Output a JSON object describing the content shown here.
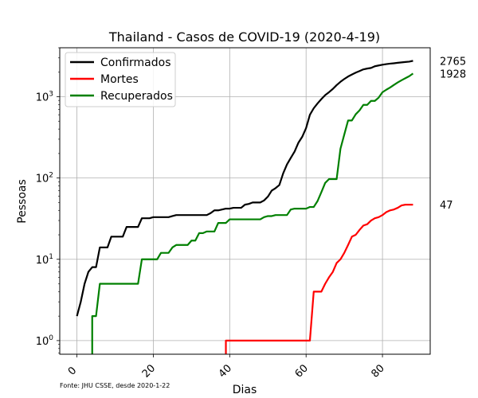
{
  "chart_data": {
    "type": "line",
    "title": "Thailand - Casos de COVID-19 (2020-4-19)",
    "xlabel": "Dias",
    "ylabel": "Pessoas",
    "yscale": "log",
    "xlim": [
      -4.5,
      92.5
    ],
    "ylim": [
      0.68,
      4000
    ],
    "grid": true,
    "legend_position": "top-left",
    "source": "Fonte: JHU CSSE, desde 2020-1-22",
    "x_ticks": [
      {
        "value": 0,
        "label": "0"
      },
      {
        "value": 20,
        "label": "20"
      },
      {
        "value": 40,
        "label": "40"
      },
      {
        "value": 60,
        "label": "60"
      },
      {
        "value": 80,
        "label": "80"
      }
    ],
    "y_ticks": [
      {
        "value": 1,
        "base": "10",
        "exp": "0"
      },
      {
        "value": 10,
        "base": "10",
        "exp": "1"
      },
      {
        "value": 100,
        "base": "10",
        "exp": "2"
      },
      {
        "value": 1000,
        "base": "10",
        "exp": "3"
      }
    ],
    "series": [
      {
        "name": "Confirmados",
        "color": "#000000",
        "end_label": "2765",
        "points": [
          [
            0,
            2
          ],
          [
            1,
            3
          ],
          [
            2,
            5
          ],
          [
            3,
            7
          ],
          [
            4,
            8
          ],
          [
            5,
            8
          ],
          [
            6,
            14
          ],
          [
            7,
            14
          ],
          [
            8,
            14
          ],
          [
            9,
            19
          ],
          [
            10,
            19
          ],
          [
            11,
            19
          ],
          [
            12,
            19
          ],
          [
            13,
            25
          ],
          [
            14,
            25
          ],
          [
            15,
            25
          ],
          [
            16,
            25
          ],
          [
            17,
            32
          ],
          [
            18,
            32
          ],
          [
            19,
            32
          ],
          [
            20,
            33
          ],
          [
            21,
            33
          ],
          [
            22,
            33
          ],
          [
            23,
            33
          ],
          [
            24,
            33
          ],
          [
            25,
            34
          ],
          [
            26,
            35
          ],
          [
            27,
            35
          ],
          [
            28,
            35
          ],
          [
            29,
            35
          ],
          [
            30,
            35
          ],
          [
            31,
            35
          ],
          [
            32,
            35
          ],
          [
            33,
            35
          ],
          [
            34,
            35
          ],
          [
            35,
            37
          ],
          [
            36,
            40
          ],
          [
            37,
            40
          ],
          [
            38,
            41
          ],
          [
            39,
            42
          ],
          [
            40,
            42
          ],
          [
            41,
            43
          ],
          [
            42,
            43
          ],
          [
            43,
            43
          ],
          [
            44,
            47
          ],
          [
            45,
            48
          ],
          [
            46,
            50
          ],
          [
            47,
            50
          ],
          [
            48,
            50
          ],
          [
            49,
            53
          ],
          [
            50,
            59
          ],
          [
            51,
            70
          ],
          [
            52,
            75
          ],
          [
            53,
            82
          ],
          [
            54,
            114
          ],
          [
            55,
            147
          ],
          [
            56,
            177
          ],
          [
            57,
            212
          ],
          [
            58,
            272
          ],
          [
            59,
            322
          ],
          [
            60,
            411
          ],
          [
            61,
            599
          ],
          [
            62,
            721
          ],
          [
            63,
            827
          ],
          [
            64,
            934
          ],
          [
            65,
            1045
          ],
          [
            66,
            1136
          ],
          [
            67,
            1245
          ],
          [
            68,
            1388
          ],
          [
            69,
            1524
          ],
          [
            70,
            1651
          ],
          [
            71,
            1771
          ],
          [
            72,
            1875
          ],
          [
            73,
            1978
          ],
          [
            74,
            2067
          ],
          [
            75,
            2169
          ],
          [
            76,
            2220
          ],
          [
            77,
            2258
          ],
          [
            78,
            2369
          ],
          [
            79,
            2423
          ],
          [
            80,
            2473
          ],
          [
            81,
            2518
          ],
          [
            82,
            2551
          ],
          [
            83,
            2579
          ],
          [
            84,
            2613
          ],
          [
            85,
            2643
          ],
          [
            86,
            2672
          ],
          [
            87,
            2700
          ],
          [
            88,
            2765
          ]
        ]
      },
      {
        "name": "Mortes",
        "color": "#ff0000",
        "end_label": "47",
        "points": [
          [
            39,
            0.68
          ],
          [
            39,
            1
          ],
          [
            40,
            1
          ],
          [
            41,
            1
          ],
          [
            42,
            1
          ],
          [
            43,
            1
          ],
          [
            44,
            1
          ],
          [
            45,
            1
          ],
          [
            46,
            1
          ],
          [
            47,
            1
          ],
          [
            48,
            1
          ],
          [
            49,
            1
          ],
          [
            50,
            1
          ],
          [
            51,
            1
          ],
          [
            52,
            1
          ],
          [
            53,
            1
          ],
          [
            54,
            1
          ],
          [
            55,
            1
          ],
          [
            56,
            1
          ],
          [
            57,
            1
          ],
          [
            58,
            1
          ],
          [
            59,
            1
          ],
          [
            60,
            1
          ],
          [
            61,
            1
          ],
          [
            62,
            4
          ],
          [
            63,
            4
          ],
          [
            64,
            4
          ],
          [
            65,
            5
          ],
          [
            66,
            6
          ],
          [
            67,
            7
          ],
          [
            68,
            9
          ],
          [
            69,
            10
          ],
          [
            70,
            12
          ],
          [
            71,
            15
          ],
          [
            72,
            19
          ],
          [
            73,
            20
          ],
          [
            74,
            23
          ],
          [
            75,
            26
          ],
          [
            76,
            27
          ],
          [
            77,
            30
          ],
          [
            78,
            32
          ],
          [
            79,
            33
          ],
          [
            80,
            35
          ],
          [
            81,
            38
          ],
          [
            82,
            40
          ],
          [
            83,
            41
          ],
          [
            84,
            43
          ],
          [
            85,
            46
          ],
          [
            86,
            47
          ],
          [
            87,
            47
          ],
          [
            88,
            47
          ]
        ]
      },
      {
        "name": "Recuperados",
        "color": "#008000",
        "end_label": "1928",
        "points": [
          [
            4,
            0.68
          ],
          [
            4,
            2
          ],
          [
            5,
            2
          ],
          [
            6,
            5
          ],
          [
            7,
            5
          ],
          [
            8,
            5
          ],
          [
            9,
            5
          ],
          [
            10,
            5
          ],
          [
            11,
            5
          ],
          [
            12,
            5
          ],
          [
            13,
            5
          ],
          [
            14,
            5
          ],
          [
            15,
            5
          ],
          [
            16,
            5
          ],
          [
            17,
            10
          ],
          [
            18,
            10
          ],
          [
            19,
            10
          ],
          [
            20,
            10
          ],
          [
            21,
            10
          ],
          [
            22,
            12
          ],
          [
            23,
            12
          ],
          [
            24,
            12
          ],
          [
            25,
            14
          ],
          [
            26,
            15
          ],
          [
            27,
            15
          ],
          [
            28,
            15
          ],
          [
            29,
            15
          ],
          [
            30,
            17
          ],
          [
            31,
            17
          ],
          [
            32,
            21
          ],
          [
            33,
            21
          ],
          [
            34,
            22
          ],
          [
            35,
            22
          ],
          [
            36,
            22
          ],
          [
            37,
            28
          ],
          [
            38,
            28
          ],
          [
            39,
            28
          ],
          [
            40,
            31
          ],
          [
            41,
            31
          ],
          [
            42,
            31
          ],
          [
            43,
            31
          ],
          [
            44,
            31
          ],
          [
            45,
            31
          ],
          [
            46,
            31
          ],
          [
            47,
            31
          ],
          [
            48,
            31
          ],
          [
            49,
            33
          ],
          [
            50,
            34
          ],
          [
            51,
            34
          ],
          [
            52,
            35
          ],
          [
            53,
            35
          ],
          [
            54,
            35
          ],
          [
            55,
            35
          ],
          [
            56,
            41
          ],
          [
            57,
            42
          ],
          [
            58,
            42
          ],
          [
            59,
            42
          ],
          [
            60,
            42
          ],
          [
            61,
            44
          ],
          [
            62,
            44
          ],
          [
            63,
            52
          ],
          [
            64,
            67
          ],
          [
            65,
            87
          ],
          [
            66,
            97
          ],
          [
            67,
            97
          ],
          [
            68,
            97
          ],
          [
            69,
            229
          ],
          [
            70,
            342
          ],
          [
            71,
            510
          ],
          [
            72,
            510
          ],
          [
            73,
            608
          ],
          [
            74,
            680
          ],
          [
            75,
            793
          ],
          [
            76,
            793
          ],
          [
            77,
            888
          ],
          [
            78,
            888
          ],
          [
            79,
            974
          ],
          [
            80,
            1135
          ],
          [
            81,
            1218
          ],
          [
            82,
            1297
          ],
          [
            83,
            1397
          ],
          [
            84,
            1497
          ],
          [
            85,
            1593
          ],
          [
            86,
            1689
          ],
          [
            87,
            1788
          ],
          [
            88,
            1928
          ]
        ]
      }
    ]
  }
}
